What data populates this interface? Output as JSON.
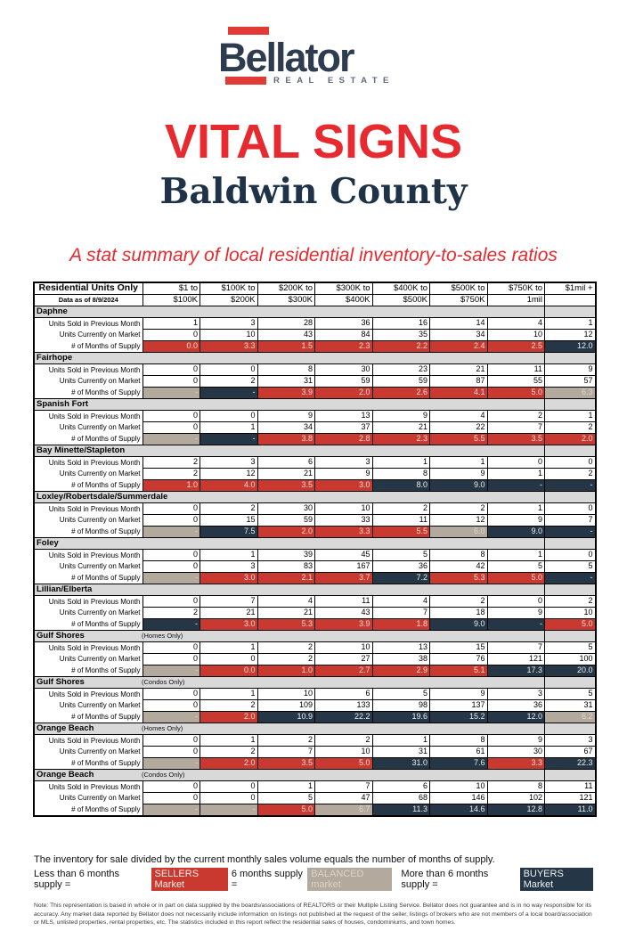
{
  "logo": {
    "name": "Bellator",
    "tagline": "REAL ESTATE"
  },
  "header": {
    "title": "VITAL SIGNS",
    "subtitle": "Baldwin County",
    "tagline": "A stat summary of local residential inventory-to-sales ratios"
  },
  "table": {
    "corner_title": "Residential Units Only",
    "corner_sub": "Data as of 8/9/2024",
    "columns": [
      [
        "$1 to",
        "$100K"
      ],
      [
        "$100K to",
        "$200K"
      ],
      [
        "$200K to",
        "$300K"
      ],
      [
        "$300K to",
        "$400K"
      ],
      [
        "$400K to",
        "$500K"
      ],
      [
        "$500K to",
        "$750K"
      ],
      [
        "$750K to",
        "1mil"
      ],
      [
        "$1mil +",
        ""
      ]
    ],
    "row_labels": [
      "Units Sold in Previous Month",
      "Units Currently on Market",
      "# of Months of Supply"
    ],
    "groups": [
      {
        "name": "Daphne",
        "sub": "",
        "sold": [
          "1",
          "3",
          "28",
          "36",
          "16",
          "14",
          "4",
          "1"
        ],
        "market": [
          "0",
          "10",
          "43",
          "84",
          "35",
          "34",
          "10",
          "12"
        ],
        "supply": [
          {
            "v": "0.0",
            "m": "seller"
          },
          {
            "v": "3.3",
            "m": "seller"
          },
          {
            "v": "1.5",
            "m": "seller"
          },
          {
            "v": "2.3",
            "m": "seller"
          },
          {
            "v": "2.2",
            "m": "seller"
          },
          {
            "v": "2.4",
            "m": "seller"
          },
          {
            "v": "2.5",
            "m": "seller"
          },
          {
            "v": "12.0",
            "m": "buyer"
          }
        ]
      },
      {
        "name": "Fairhope",
        "sub": "",
        "sold": [
          "0",
          "0",
          "8",
          "30",
          "23",
          "21",
          "11",
          "9"
        ],
        "market": [
          "0",
          "2",
          "31",
          "59",
          "59",
          "87",
          "55",
          "57"
        ],
        "supply": [
          {
            "v": "-",
            "m": "balanced"
          },
          {
            "v": "-",
            "m": "buyer"
          },
          {
            "v": "3.9",
            "m": "seller"
          },
          {
            "v": "2.0",
            "m": "seller"
          },
          {
            "v": "2.6",
            "m": "seller"
          },
          {
            "v": "4.1",
            "m": "seller"
          },
          {
            "v": "5.0",
            "m": "seller"
          },
          {
            "v": "6.3",
            "m": "balanced"
          }
        ]
      },
      {
        "name": "Spanish Fort",
        "sub": "",
        "sold": [
          "0",
          "0",
          "9",
          "13",
          "9",
          "4",
          "2",
          "1"
        ],
        "market": [
          "0",
          "1",
          "34",
          "37",
          "21",
          "22",
          "7",
          "2"
        ],
        "supply": [
          {
            "v": "-",
            "m": "balanced"
          },
          {
            "v": "-",
            "m": "buyer"
          },
          {
            "v": "3.8",
            "m": "seller"
          },
          {
            "v": "2.8",
            "m": "seller"
          },
          {
            "v": "2.3",
            "m": "seller"
          },
          {
            "v": "5.5",
            "m": "seller"
          },
          {
            "v": "3.5",
            "m": "seller"
          },
          {
            "v": "2.0",
            "m": "seller"
          }
        ]
      },
      {
        "name": "Bay Minette/Stapleton",
        "sub": "",
        "sold": [
          "2",
          "3",
          "6",
          "3",
          "1",
          "1",
          "0",
          "0"
        ],
        "market": [
          "2",
          "12",
          "21",
          "9",
          "8",
          "9",
          "1",
          "2"
        ],
        "supply": [
          {
            "v": "1.0",
            "m": "seller"
          },
          {
            "v": "4.0",
            "m": "seller"
          },
          {
            "v": "3.5",
            "m": "seller"
          },
          {
            "v": "3.0",
            "m": "seller"
          },
          {
            "v": "8.0",
            "m": "buyer"
          },
          {
            "v": "9.0",
            "m": "buyer"
          },
          {
            "v": "-",
            "m": "buyer"
          },
          {
            "v": "-",
            "m": "buyer"
          }
        ]
      },
      {
        "name": "Loxley/Robertsdale/Summerdale",
        "sub": "",
        "sold": [
          "0",
          "2",
          "30",
          "10",
          "2",
          "2",
          "1",
          "0"
        ],
        "market": [
          "0",
          "15",
          "59",
          "33",
          "11",
          "12",
          "9",
          "7"
        ],
        "supply": [
          {
            "v": "-",
            "m": "balanced"
          },
          {
            "v": "7.5",
            "m": "buyer"
          },
          {
            "v": "2.0",
            "m": "seller"
          },
          {
            "v": "3.3",
            "m": "seller"
          },
          {
            "v": "5.5",
            "m": "seller"
          },
          {
            "v": "6.0",
            "m": "balanced"
          },
          {
            "v": "9.0",
            "m": "buyer"
          },
          {
            "v": "-",
            "m": "buyer"
          }
        ]
      },
      {
        "name": "Foley",
        "sub": "",
        "sold": [
          "0",
          "1",
          "39",
          "45",
          "5",
          "8",
          "1",
          "0"
        ],
        "market": [
          "0",
          "3",
          "83",
          "167",
          "36",
          "42",
          "5",
          "5"
        ],
        "supply": [
          {
            "v": "-",
            "m": "balanced"
          },
          {
            "v": "3.0",
            "m": "seller"
          },
          {
            "v": "2.1",
            "m": "seller"
          },
          {
            "v": "3.7",
            "m": "seller"
          },
          {
            "v": "7.2",
            "m": "buyer"
          },
          {
            "v": "5.3",
            "m": "seller"
          },
          {
            "v": "5.0",
            "m": "seller"
          },
          {
            "v": "-",
            "m": "buyer"
          }
        ]
      },
      {
        "name": "Lillian/Elberta",
        "sub": "",
        "sold": [
          "0",
          "7",
          "4",
          "11",
          "4",
          "2",
          "0",
          "2"
        ],
        "market": [
          "2",
          "21",
          "21",
          "43",
          "7",
          "18",
          "9",
          "10"
        ],
        "supply": [
          {
            "v": "-",
            "m": "buyer"
          },
          {
            "v": "3.0",
            "m": "seller"
          },
          {
            "v": "5.3",
            "m": "seller"
          },
          {
            "v": "3.9",
            "m": "seller"
          },
          {
            "v": "1.8",
            "m": "seller"
          },
          {
            "v": "9.0",
            "m": "buyer"
          },
          {
            "v": "-",
            "m": "buyer"
          },
          {
            "v": "5.0",
            "m": "seller"
          }
        ]
      },
      {
        "name": "Gulf Shores",
        "sub": "(Homes Only)",
        "sold": [
          "0",
          "1",
          "2",
          "10",
          "13",
          "15",
          "7",
          "5"
        ],
        "market": [
          "0",
          "0",
          "2",
          "27",
          "38",
          "76",
          "121",
          "100"
        ],
        "supply": [
          {
            "v": "-",
            "m": "balanced"
          },
          {
            "v": "0.0",
            "m": "seller"
          },
          {
            "v": "1.0",
            "m": "seller"
          },
          {
            "v": "2.7",
            "m": "seller"
          },
          {
            "v": "2.9",
            "m": "seller"
          },
          {
            "v": "5.1",
            "m": "seller"
          },
          {
            "v": "17.3",
            "m": "buyer"
          },
          {
            "v": "20.0",
            "m": "buyer"
          }
        ]
      },
      {
        "name": "Gulf Shores",
        "sub": "(Condos Only)",
        "sold": [
          "0",
          "1",
          "10",
          "6",
          "5",
          "9",
          "3",
          "5"
        ],
        "market": [
          "0",
          "2",
          "109",
          "133",
          "98",
          "137",
          "36",
          "31"
        ],
        "supply": [
          {
            "v": "-",
            "m": "balanced"
          },
          {
            "v": "2.0",
            "m": "seller"
          },
          {
            "v": "10.9",
            "m": "buyer"
          },
          {
            "v": "22.2",
            "m": "buyer"
          },
          {
            "v": "19.6",
            "m": "buyer"
          },
          {
            "v": "15.2",
            "m": "buyer"
          },
          {
            "v": "12.0",
            "m": "buyer"
          },
          {
            "v": "6.2",
            "m": "balanced"
          }
        ]
      },
      {
        "name": "Orange Beach",
        "sub": "(Homes Only)",
        "sold": [
          "0",
          "1",
          "2",
          "2",
          "1",
          "8",
          "9",
          "3"
        ],
        "market": [
          "0",
          "2",
          "7",
          "10",
          "31",
          "61",
          "30",
          "67"
        ],
        "supply": [
          {
            "v": "-",
            "m": "balanced"
          },
          {
            "v": "2.0",
            "m": "seller"
          },
          {
            "v": "3.5",
            "m": "seller"
          },
          {
            "v": "5.0",
            "m": "seller"
          },
          {
            "v": "31.0",
            "m": "buyer"
          },
          {
            "v": "7.6",
            "m": "buyer"
          },
          {
            "v": "3.3",
            "m": "seller"
          },
          {
            "v": "22.3",
            "m": "buyer"
          }
        ]
      },
      {
        "name": "Orange Beach",
        "sub": "(Condos Only)",
        "sold": [
          "0",
          "0",
          "1",
          "7",
          "6",
          "10",
          "8",
          "11"
        ],
        "market": [
          "0",
          "0",
          "5",
          "47",
          "68",
          "146",
          "102",
          "121"
        ],
        "supply": [
          {
            "v": "-",
            "m": "balanced"
          },
          {
            "v": "-",
            "m": "balanced"
          },
          {
            "v": "5.0",
            "m": "seller"
          },
          {
            "v": "6.7",
            "m": "balanced"
          },
          {
            "v": "11.3",
            "m": "buyer"
          },
          {
            "v": "14.6",
            "m": "buyer"
          },
          {
            "v": "12.8",
            "m": "buyer"
          },
          {
            "v": "11.0",
            "m": "buyer"
          }
        ]
      }
    ]
  },
  "footer": {
    "definition": "The inventory for sale divided by the current monthly sales volume equals the number of months of supply.",
    "legend": {
      "sellers_prefix": "Less than 6 months supply =",
      "sellers_label": "SELLERS Market",
      "balanced_prefix": "6 months supply =",
      "balanced_label": "BALANCED market",
      "buyers_prefix": "More than 6 months supply =",
      "buyers_label": "BUYERS Market"
    },
    "note": "Note: This representation is based in whole or in part on data supplied by the boards/associations of REALTORS or their Multiple Listing Service. Bellator does not guarantee and is in no way responsible for its accuracy. Any market data reported by Bellator does not necessarily include information on listings not published at the request of the seller, listings of brokers who are not members of a local board/association or MLS, unlisted properties, rental properties, etc. The statistics included in this report reflect the residential sales of houses, condominiums, and town homes."
  },
  "colors": {
    "red": "#e62a2f",
    "navy": "#1f3348",
    "logo_navy": "#2d3c4f",
    "logo_red": "#e23b35",
    "seller": "#c9392f",
    "buyer": "#253746",
    "balanced": "#b3a99c",
    "section_gray": "#d9d9d9"
  }
}
